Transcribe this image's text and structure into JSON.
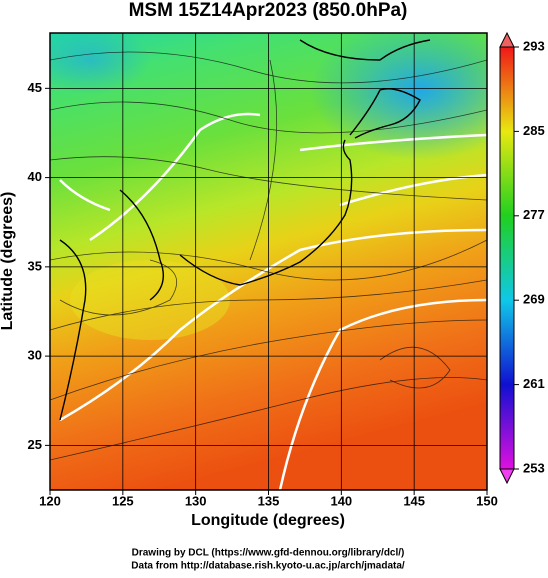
{
  "map": {
    "title": "MSM 15Z14Apr2023 (850.0hPa)",
    "xlabel": "Longitude (degrees)",
    "ylabel": "Latitude  (degrees)",
    "xlim": [
      120,
      150
    ],
    "ylim": [
      22.5,
      48.1
    ],
    "xticks": [
      120,
      125,
      130,
      135,
      140,
      145,
      150
    ],
    "yticks": [
      25,
      30,
      35,
      40,
      45
    ]
  },
  "colorbar": {
    "lim": [
      253,
      293
    ],
    "ticks": [
      253,
      261,
      269,
      277,
      285,
      293
    ]
  },
  "footer": [
    "Drawing by DCL (https://www.gfd-dennou.org/library/dcl/)",
    "Data from http://database.rish.kyoto-u.ac.jp/arch/jmadata/"
  ]
}
